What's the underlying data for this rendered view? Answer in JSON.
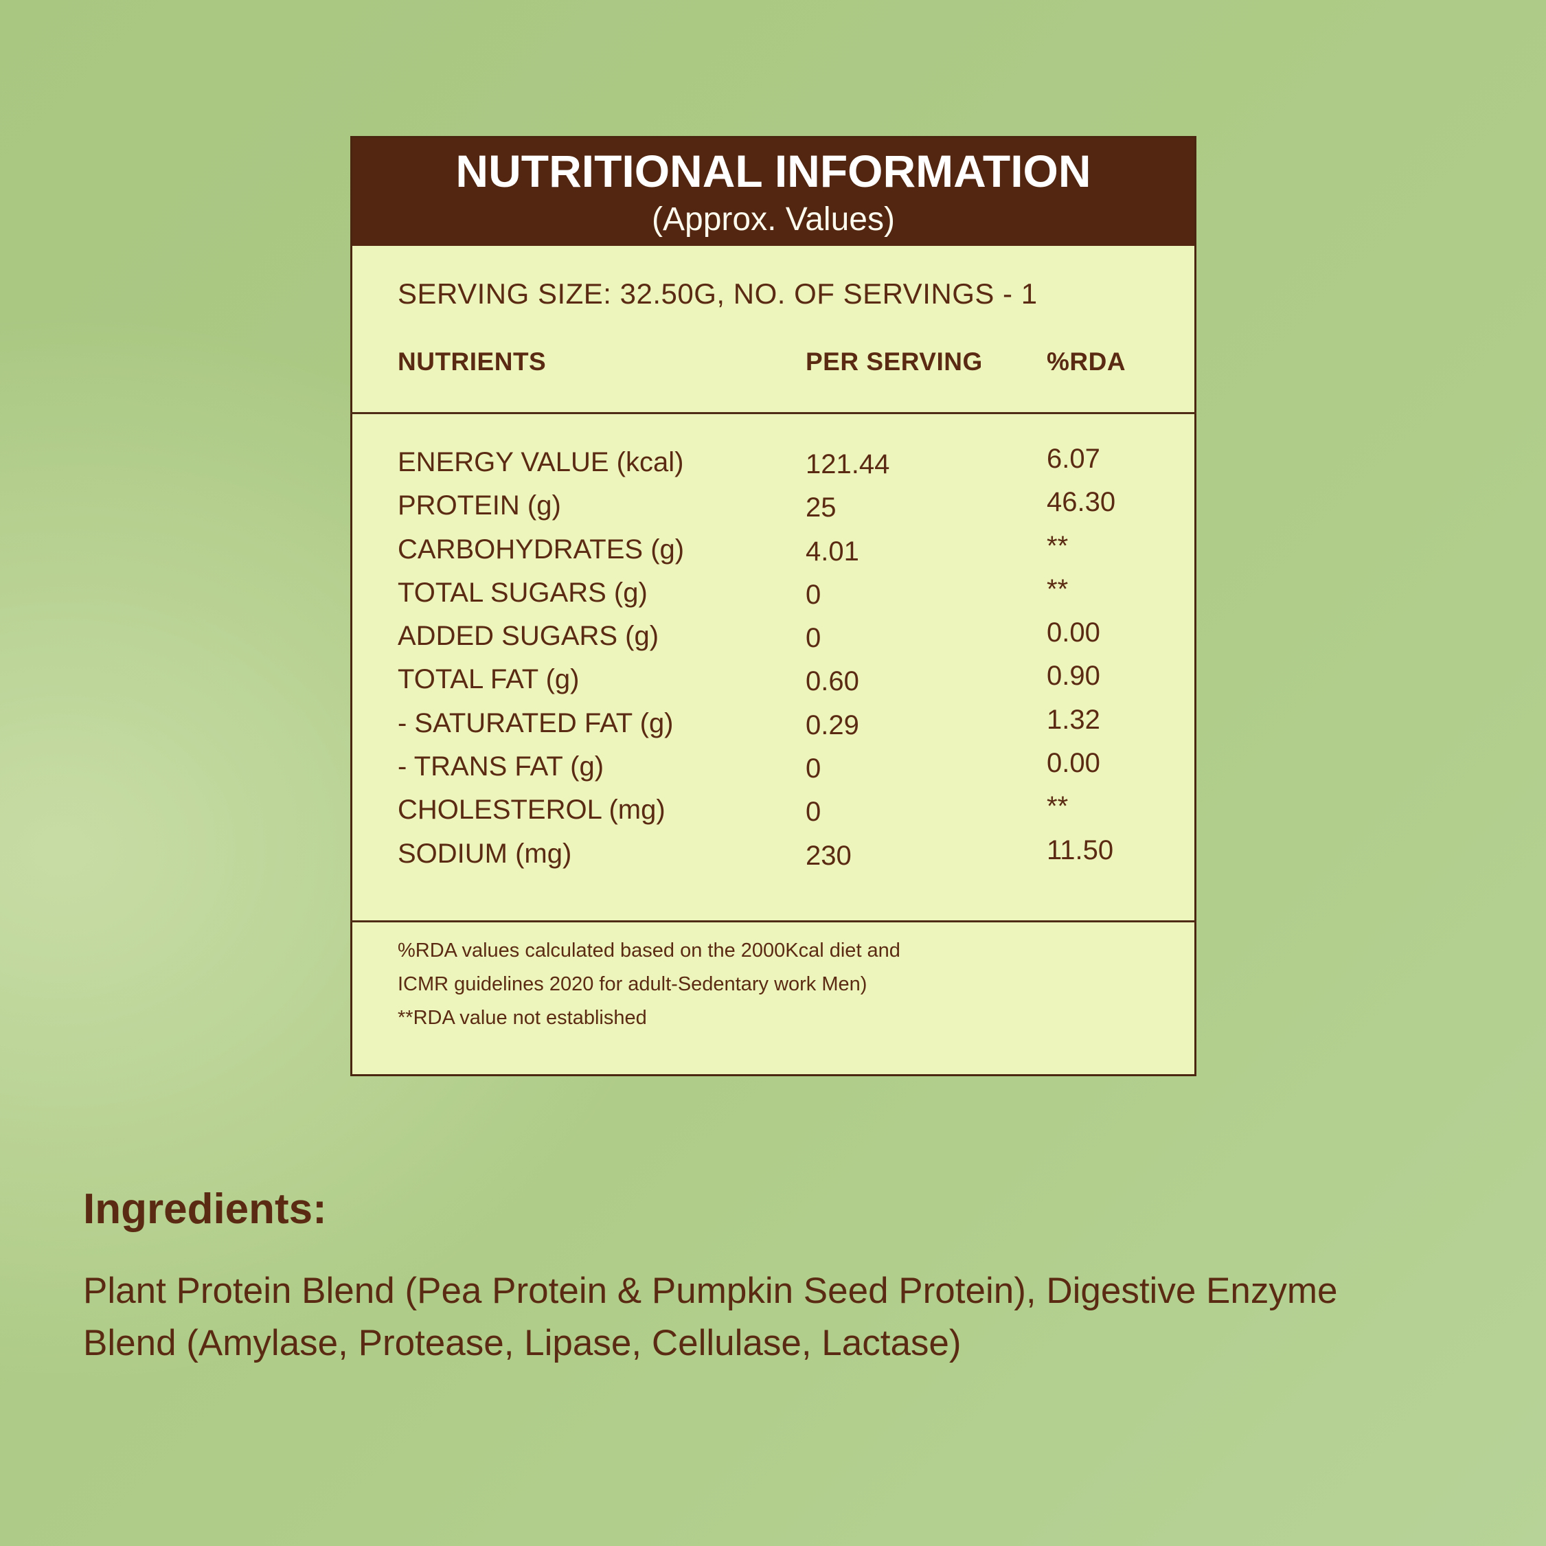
{
  "panel": {
    "title": "NUTRITIONAL INFORMATION",
    "subtitle": "(Approx. Values)",
    "serving_line": "SERVING SIZE: 32.50G, NO. OF SERVINGS - 1",
    "columns": [
      "NUTRIENTS",
      "PER SERVING",
      "%RDA"
    ],
    "rows": [
      {
        "nutrient": "ENERGY VALUE (kcal)",
        "per_serving": "121.44",
        "rda": "6.07"
      },
      {
        "nutrient": "PROTEIN (g)",
        "per_serving": "25",
        "rda": "46.30"
      },
      {
        "nutrient": "CARBOHYDRATES (g)",
        "per_serving": "4.01",
        "rda": "**"
      },
      {
        "nutrient": "TOTAL SUGARS (g)",
        "per_serving": "0",
        "rda": "**"
      },
      {
        "nutrient": "ADDED SUGARS (g)",
        "per_serving": "0",
        "rda": "0.00"
      },
      {
        "nutrient": "TOTAL FAT (g)",
        "per_serving": "0.60",
        "rda": "0.90"
      },
      {
        "nutrient": "- SATURATED FAT (g)",
        "per_serving": "0.29",
        "rda": "1.32"
      },
      {
        "nutrient": "- TRANS FAT (g)",
        "per_serving": "0",
        "rda": "0.00"
      },
      {
        "nutrient": "CHOLESTEROL (mg)",
        "per_serving": "0",
        "rda": "**"
      },
      {
        "nutrient": "SODIUM (mg)",
        "per_serving": "230",
        "rda": "11.50"
      }
    ],
    "footnotes": [
      "%RDA values calculated based on the 2000Kcal diet and",
      "ICMR guidelines 2020 for adult-Sedentary work Men)",
      "**RDA value not established"
    ]
  },
  "ingredients": {
    "heading": "Ingredients:",
    "text": "Plant Protein Blend (Pea Protein & Pumpkin Seed Protein), Digestive Enzyme Blend (Amylase, Protease, Lipase, Cellulase, Lactase)"
  },
  "colors": {
    "background_green": "#adca86",
    "header_brown": "#522610",
    "panel_yellow": "#eef5bc",
    "border_brown": "#4a2610",
    "text_brown": "#5a2b12",
    "title_white": "#ffffff"
  }
}
